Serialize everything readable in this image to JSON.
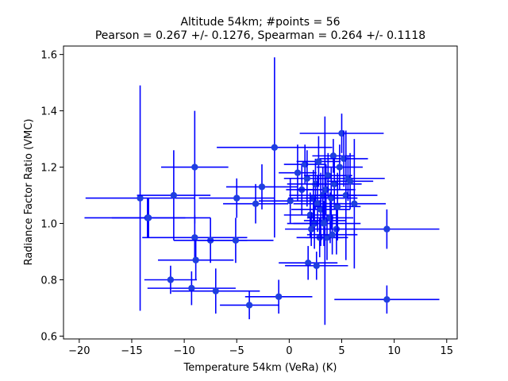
{
  "chart_data": {
    "type": "scatter",
    "title": "Altitude 54km;  #points = 56",
    "subtitle": "Pearson =  0.267 +/-  0.1276, Spearman =  0.264 +/-  0.1118",
    "xlabel": "Temperature 54km (VeRa) (K)",
    "ylabel": "Radiance Factor Ratio (VMC)",
    "xlim": [
      -21.5,
      16.0
    ],
    "ylim": [
      0.59,
      1.63
    ],
    "xticks": [
      -20,
      -15,
      -10,
      -5,
      0,
      5,
      10,
      15
    ],
    "yticks": [
      0.6,
      0.8,
      1.0,
      1.2,
      1.4,
      1.6
    ],
    "grid": false,
    "color": "#0000ff",
    "marker_color": "#1f3fe0",
    "points": [
      {
        "x": -14.2,
        "y": 1.09,
        "xerr": 5.2,
        "yerr": 0.4
      },
      {
        "x": -13.5,
        "y": 1.02,
        "xerr": 6.0,
        "yerr": 0.07
      },
      {
        "x": -13.4,
        "y": 1.02,
        "xerr": 3.5,
        "yerr": 0.07
      },
      {
        "x": -11.0,
        "y": 1.1,
        "xerr": 3.5,
        "yerr": 0.16
      },
      {
        "x": -9.0,
        "y": 1.2,
        "xerr": 3.2,
        "yerr": 0.2
      },
      {
        "x": -9.0,
        "y": 0.95,
        "xerr": 5.0,
        "yerr": 0.08
      },
      {
        "x": -8.9,
        "y": 0.87,
        "xerr": 3.6,
        "yerr": 0.07
      },
      {
        "x": -7.5,
        "y": 0.94,
        "xerr": 3.5,
        "yerr": 0.08
      },
      {
        "x": -5.1,
        "y": 0.94,
        "xerr": 3.6,
        "yerr": 0.08
      },
      {
        "x": -5.0,
        "y": 1.09,
        "xerr": 3.6,
        "yerr": 0.07
      },
      {
        "x": -11.3,
        "y": 0.8,
        "xerr": 2.5,
        "yerr": 0.05
      },
      {
        "x": -9.3,
        "y": 0.77,
        "xerr": 4.2,
        "yerr": 0.06
      },
      {
        "x": -7.0,
        "y": 0.76,
        "xerr": 4.2,
        "yerr": 0.08
      },
      {
        "x": -3.8,
        "y": 0.71,
        "xerr": 2.8,
        "yerr": 0.05
      },
      {
        "x": -1.0,
        "y": 0.74,
        "xerr": 3.2,
        "yerr": 0.06
      },
      {
        "x": -1.4,
        "y": 1.27,
        "xerr": 5.5,
        "yerr": 0.32
      },
      {
        "x": -3.2,
        "y": 1.07,
        "xerr": 3.1,
        "yerr": 0.07
      },
      {
        "x": -2.6,
        "y": 1.13,
        "xerr": 3.4,
        "yerr": 0.08
      },
      {
        "x": 0.1,
        "y": 1.08,
        "xerr": 3.0,
        "yerr": 0.08
      },
      {
        "x": 0.8,
        "y": 1.18,
        "xerr": 1.8,
        "yerr": 0.1
      },
      {
        "x": 1.2,
        "y": 1.12,
        "xerr": 1.5,
        "yerr": 0.09
      },
      {
        "x": 1.5,
        "y": 1.21,
        "xerr": 2.0,
        "yerr": 0.07
      },
      {
        "x": 1.7,
        "y": 1.16,
        "xerr": 2.2,
        "yerr": 0.1
      },
      {
        "x": 1.8,
        "y": 0.86,
        "xerr": 2.8,
        "yerr": 0.06
      },
      {
        "x": 2.0,
        "y": 1.03,
        "xerr": 2.5,
        "yerr": 0.08
      },
      {
        "x": 2.1,
        "y": 0.98,
        "xerr": 2.5,
        "yerr": 0.06
      },
      {
        "x": 2.3,
        "y": 1.09,
        "xerr": 2.4,
        "yerr": 0.1
      },
      {
        "x": 2.4,
        "y": 1.0,
        "xerr": 2.0,
        "yerr": 0.09
      },
      {
        "x": 2.5,
        "y": 1.14,
        "xerr": 2.7,
        "yerr": 0.09
      },
      {
        "x": 2.6,
        "y": 0.85,
        "xerr": 3.0,
        "yerr": 0.05
      },
      {
        "x": 2.7,
        "y": 1.07,
        "xerr": 2.3,
        "yerr": 0.1
      },
      {
        "x": 2.8,
        "y": 1.22,
        "xerr": 2.1,
        "yerr": 0.09
      },
      {
        "x": 2.9,
        "y": 0.95,
        "xerr": 2.2,
        "yerr": 0.07
      },
      {
        "x": 3.0,
        "y": 1.05,
        "xerr": 2.8,
        "yerr": 0.13
      },
      {
        "x": 3.2,
        "y": 1.1,
        "xerr": 3.2,
        "yerr": 0.1
      },
      {
        "x": 3.4,
        "y": 1.01,
        "xerr": 2.0,
        "yerr": 0.37
      },
      {
        "x": 3.5,
        "y": 1.12,
        "xerr": 2.8,
        "yerr": 0.09
      },
      {
        "x": 3.6,
        "y": 0.95,
        "xerr": 2.0,
        "yerr": 0.08
      },
      {
        "x": 3.7,
        "y": 1.17,
        "xerr": 2.3,
        "yerr": 0.08
      },
      {
        "x": 3.9,
        "y": 1.02,
        "xerr": 2.2,
        "yerr": 0.09
      },
      {
        "x": 4.0,
        "y": 1.09,
        "xerr": 2.5,
        "yerr": 0.11
      },
      {
        "x": 4.1,
        "y": 0.96,
        "xerr": 2.4,
        "yerr": 0.07
      },
      {
        "x": 4.2,
        "y": 1.24,
        "xerr": 2.0,
        "yerr": 0.06
      },
      {
        "x": 4.3,
        "y": 1.14,
        "xerr": 2.6,
        "yerr": 0.09
      },
      {
        "x": 4.5,
        "y": 0.98,
        "xerr": 2.0,
        "yerr": 0.09
      },
      {
        "x": 4.6,
        "y": 1.06,
        "xerr": 2.2,
        "yerr": 0.12
      },
      {
        "x": 4.8,
        "y": 1.2,
        "xerr": 2.2,
        "yerr": 0.08
      },
      {
        "x": 5.0,
        "y": 1.32,
        "xerr": 4.0,
        "yerr": 0.07
      },
      {
        "x": 5.2,
        "y": 1.23,
        "xerr": 2.3,
        "yerr": 0.1
      },
      {
        "x": 5.4,
        "y": 1.1,
        "xerr": 3.0,
        "yerr": 0.23
      },
      {
        "x": 5.6,
        "y": 1.16,
        "xerr": 3.5,
        "yerr": 0.08
      },
      {
        "x": 5.8,
        "y": 1.15,
        "xerr": 2.2,
        "yerr": 0.1
      },
      {
        "x": 6.2,
        "y": 1.07,
        "xerr": 3.0,
        "yerr": 0.23
      },
      {
        "x": 3.3,
        "y": 1.0,
        "xerr": 3.5,
        "yerr": 0.08
      },
      {
        "x": 9.3,
        "y": 0.98,
        "xerr": 5.0,
        "yerr": 0.07
      },
      {
        "x": 9.3,
        "y": 0.73,
        "xerr": 5.0,
        "yerr": 0.05
      }
    ]
  }
}
